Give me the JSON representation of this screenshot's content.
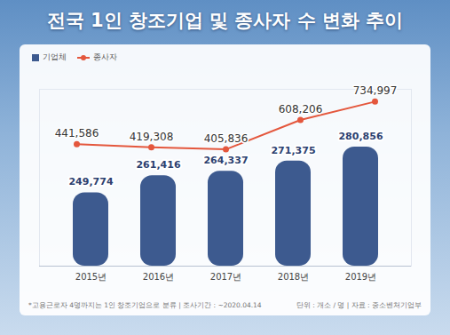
{
  "chart_data": {
    "type": "bar",
    "title": "전국 1인 창조기업 및 종사자 수 변화 추이",
    "categories": [
      "2015년",
      "2016년",
      "2017년",
      "2018년",
      "2019년"
    ],
    "series": [
      {
        "name": "기업체",
        "type": "bar",
        "color": "#3d5a8f",
        "values": [
          249774,
          261416,
          264337,
          271375,
          280856
        ],
        "value_labels": [
          "249,774",
          "261,416",
          "264,337",
          "271,375",
          "280,856"
        ]
      },
      {
        "name": "종사자",
        "type": "line",
        "axis": "y2",
        "color": "#e4573d",
        "marker": "circle",
        "values": [
          441586,
          419308,
          405836,
          608206,
          734997
        ],
        "value_labels": [
          "441,586",
          "419,308",
          "405,836",
          "608,206",
          "734,997"
        ]
      }
    ],
    "ylim": [
      200000,
      320000
    ],
    "y2lim": [
      -400000,
      820000
    ],
    "data_labels": true,
    "tick_labels": "x",
    "legend": "top-left",
    "annotations": [
      "*고용근로자 4명까지는 1인 창조기업으로 분류  |  조사기간 : ~2020.04.14",
      "단위 : 개소 / 명  |  자료 : 중소벤처기업부"
    ]
  }
}
